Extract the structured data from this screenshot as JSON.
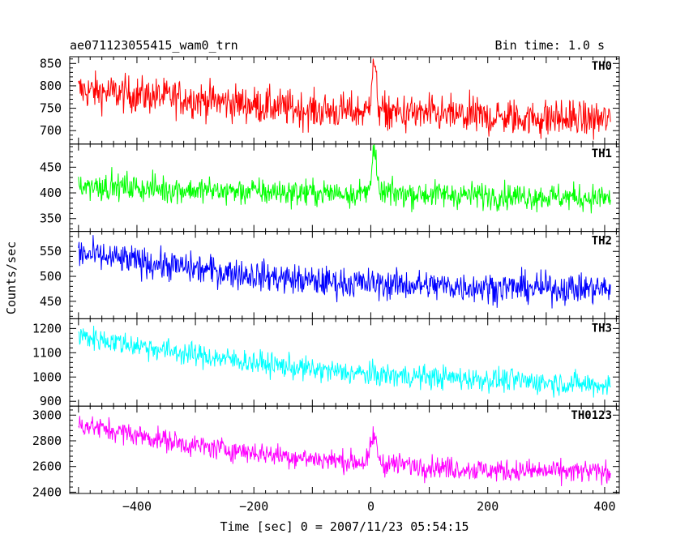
{
  "header": {
    "title": "ae071123055415_wam0_trn",
    "bin_time": "Bin time: 1.0 s"
  },
  "chart_data": {
    "type": "line",
    "title": "ae071123055415_wam0_trn",
    "subtitle": "Bin time: 1.0 s",
    "xlabel": "Time [sec] 0 = 2007/11/23 05:54:15",
    "ylabel": "Counts/sec",
    "xlim": [
      -515,
      425
    ],
    "x_start": -500,
    "x_end": 410,
    "x_step": 1,
    "x_ticks": [
      -400,
      -200,
      0,
      200,
      400
    ],
    "x_tick_labels": [
      "−400",
      "−200",
      "0",
      "200",
      "400"
    ],
    "grid": false,
    "panels": [
      {
        "name": "TH0",
        "color": "#ff0000",
        "ylim": [
          670,
          865
        ],
        "y_ticks": [
          700,
          750,
          800,
          850
        ],
        "trend": [
          [
            -500,
            790
          ],
          [
            -300,
            770
          ],
          [
            -100,
            745
          ],
          [
            0,
            742
          ],
          [
            200,
            730
          ],
          [
            410,
            725
          ]
        ],
        "noise": 38,
        "burst": {
          "x": 5,
          "peak": 865,
          "width": 4
        }
      },
      {
        "name": "TH1",
        "color": "#00ff00",
        "ylim": [
          325,
          495
        ],
        "y_ticks": [
          350,
          400,
          450
        ],
        "trend": [
          [
            -500,
            415
          ],
          [
            -300,
            405
          ],
          [
            -100,
            400
          ],
          [
            0,
            400
          ],
          [
            200,
            395
          ],
          [
            410,
            390
          ]
        ],
        "noise": 24,
        "burst": {
          "x": 5,
          "peak": 495,
          "width": 4
        }
      },
      {
        "name": "TH2",
        "color": "#0000ff",
        "ylim": [
          415,
          590
        ],
        "y_ticks": [
          450,
          500,
          550
        ],
        "trend": [
          [
            -500,
            545
          ],
          [
            -300,
            515
          ],
          [
            -100,
            490
          ],
          [
            0,
            485
          ],
          [
            200,
            478
          ],
          [
            410,
            475
          ]
        ],
        "noise": 28,
        "burst": null
      },
      {
        "name": "TH3",
        "color": "#00ffff",
        "ylim": [
          880,
          1240
        ],
        "y_ticks": [
          900,
          1000,
          1100,
          1200
        ],
        "trend": [
          [
            -500,
            1170
          ],
          [
            -300,
            1090
          ],
          [
            -100,
            1030
          ],
          [
            0,
            1010
          ],
          [
            200,
            990
          ],
          [
            410,
            965
          ]
        ],
        "noise": 45,
        "burst": null
      },
      {
        "name": "TH0123",
        "color": "#ff00ff",
        "ylim": [
          2390,
          3070
        ],
        "y_ticks": [
          2400,
          2600,
          2800,
          3000
        ],
        "trend": [
          [
            -500,
            2930
          ],
          [
            -300,
            2760
          ],
          [
            -100,
            2660
          ],
          [
            0,
            2630
          ],
          [
            200,
            2570
          ],
          [
            410,
            2555
          ]
        ],
        "noise": 80,
        "burst": {
          "x": 5,
          "peak": 2870,
          "width": 5
        }
      }
    ]
  }
}
